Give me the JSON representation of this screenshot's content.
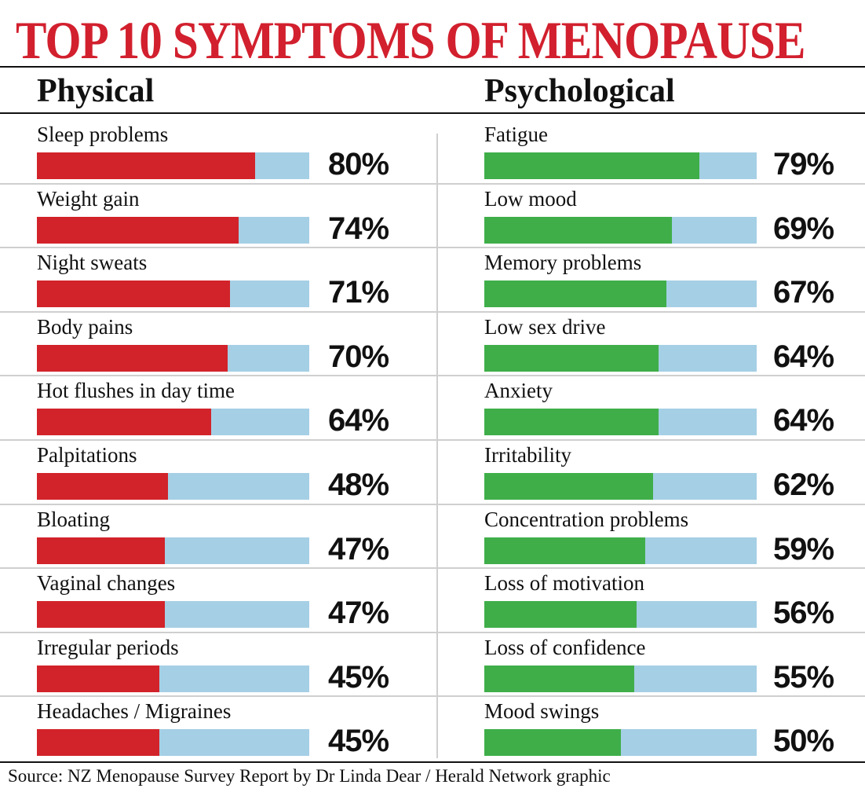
{
  "chart_data": {
    "type": "bar",
    "title": "TOP 10 SYMPTOMS OF MENOPAUSE",
    "unit": "%",
    "xlim": [
      0,
      100
    ],
    "panels": [
      {
        "name": "Physical",
        "color": "#d2232a",
        "categories": [
          "Sleep problems",
          "Weight gain",
          "Night sweats",
          "Body pains",
          "Hot flushes in day time",
          "Palpitations",
          "Bloating",
          "Vaginal changes",
          "Irregular periods",
          "Headaches / Migraines"
        ],
        "values": [
          80,
          74,
          71,
          70,
          64,
          48,
          47,
          47,
          45,
          45
        ],
        "labels": [
          "80%",
          "74%",
          "71%",
          "70%",
          "64%",
          "48%",
          "47%",
          "47%",
          "45%",
          "45%"
        ]
      },
      {
        "name": "Psychological",
        "color": "#3fae49",
        "categories": [
          "Fatigue",
          "Low mood",
          "Memory problems",
          "Low sex drive",
          "Anxiety",
          "Irritability",
          "Concentration problems",
          "Loss of motivation",
          "Loss of confidence",
          "Mood swings"
        ],
        "values": [
          79,
          69,
          67,
          64,
          64,
          62,
          59,
          56,
          55,
          50
        ],
        "labels": [
          "79%",
          "69%",
          "67%",
          "64%",
          "64%",
          "62%",
          "59%",
          "56%",
          "55%",
          "50%"
        ]
      }
    ],
    "track_color": "#a5cfe5",
    "source": "Source: NZ Menopause Survey Report by Dr Linda Dear /  Herald Network graphic"
  }
}
